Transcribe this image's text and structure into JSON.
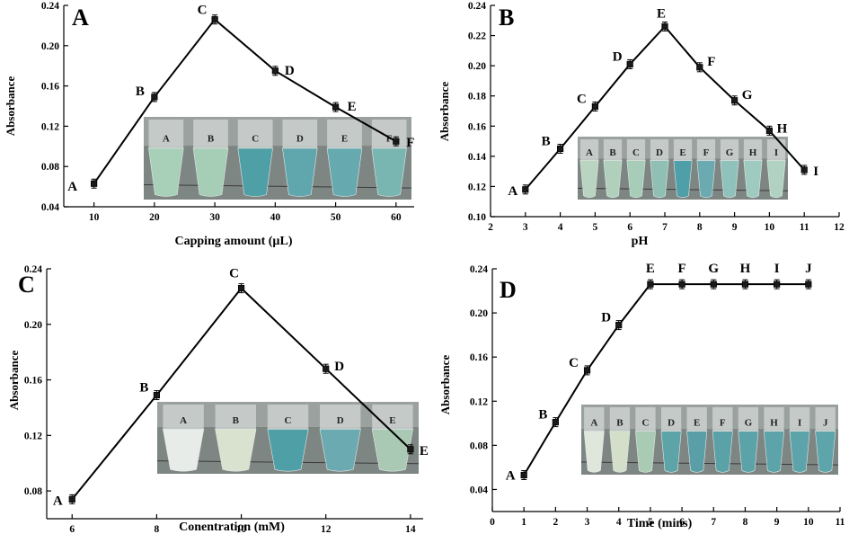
{
  "chart_data": [
    {
      "panel": "A",
      "type": "line",
      "x": [
        10,
        20,
        30,
        40,
        50,
        60
      ],
      "y": [
        0.063,
        0.149,
        0.226,
        0.175,
        0.139,
        0.105
      ],
      "point_labels": [
        "A",
        "B",
        "C",
        "D",
        "E",
        "F"
      ],
      "xlabel": "Capping amount (µL)",
      "ylabel": "Absorbance",
      "xlim": [
        5,
        63
      ],
      "ylim": [
        0.04,
        0.24
      ],
      "xticks": [
        10,
        20,
        30,
        40,
        50,
        60
      ],
      "yticks": [
        0.04,
        0.08,
        0.12,
        0.16,
        0.2,
        0.24
      ],
      "tube_labels": [
        "A",
        "B",
        "C",
        "D",
        "E",
        "F"
      ],
      "tube_colors": [
        "#a8cfb8",
        "#a6cdb6",
        "#4f9fa6",
        "#5fa6ad",
        "#66aab0",
        "#79b6b2"
      ]
    },
    {
      "panel": "B",
      "type": "line",
      "x": [
        3,
        4,
        5,
        6,
        7,
        8,
        9,
        10,
        11
      ],
      "y": [
        0.118,
        0.145,
        0.173,
        0.201,
        0.226,
        0.199,
        0.177,
        0.157,
        0.131
      ],
      "point_labels": [
        "A",
        "B",
        "C",
        "D",
        "E",
        "F",
        "G",
        "H",
        "I"
      ],
      "xlabel": "pH",
      "ylabel": "Absorbance",
      "xlim": [
        2,
        12
      ],
      "ylim": [
        0.1,
        0.24
      ],
      "xticks": [
        2,
        3,
        4,
        5,
        6,
        7,
        8,
        9,
        10,
        11,
        12
      ],
      "yticks": [
        0.1,
        0.12,
        0.14,
        0.16,
        0.18,
        0.2,
        0.22,
        0.24
      ],
      "tube_labels": [
        "A",
        "B",
        "C",
        "D",
        "E",
        "F",
        "G",
        "H",
        "I"
      ],
      "tube_colors": [
        "#b9d4c0",
        "#b0d0bc",
        "#a7ccb8",
        "#8fc0b3",
        "#4f9fa8",
        "#6aaab0",
        "#8fc2bb",
        "#9fcac0",
        "#b1d2c3"
      ]
    },
    {
      "panel": "C",
      "type": "line",
      "x": [
        6,
        8,
        10,
        12,
        14
      ],
      "y": [
        0.074,
        0.149,
        0.226,
        0.168,
        0.11
      ],
      "point_labels": [
        "A",
        "B",
        "C",
        "D",
        "E"
      ],
      "xlabel": "Conentration (mM)",
      "ylabel": "Absorbance",
      "xlim": [
        5.4,
        14.3
      ],
      "ylim": [
        0.06,
        0.24
      ],
      "xticks": [
        6,
        8,
        10,
        12,
        14
      ],
      "yticks": [
        0.08,
        0.12,
        0.16,
        0.2,
        0.24
      ],
      "tube_labels": [
        "A",
        "B",
        "C",
        "D",
        "E"
      ],
      "tube_colors": [
        "#e7ece9",
        "#d8e2cf",
        "#4f9fa6",
        "#6aaab0",
        "#a9c9b4"
      ]
    },
    {
      "panel": "D",
      "type": "line",
      "x": [
        1,
        2,
        3,
        4,
        5,
        6,
        7,
        8,
        9,
        10
      ],
      "y": [
        0.053,
        0.101,
        0.148,
        0.189,
        0.226,
        0.226,
        0.226,
        0.226,
        0.226,
        0.226
      ],
      "point_labels": [
        "A",
        "B",
        "C",
        "D",
        "E",
        "F",
        "G",
        "H",
        "I",
        "J"
      ],
      "xlabel": "Time (mins)",
      "ylabel": "Absorbance",
      "xlim": [
        0,
        11
      ],
      "ylim": [
        0.02,
        0.24
      ],
      "xticks": [
        0,
        1,
        2,
        3,
        4,
        5,
        6,
        7,
        8,
        9,
        10,
        11
      ],
      "yticks": [
        0.04,
        0.08,
        0.12,
        0.16,
        0.2,
        0.24
      ],
      "tube_labels": [
        "A",
        "B",
        "C",
        "D",
        "E",
        "F",
        "G",
        "H",
        "I",
        "J"
      ],
      "tube_colors": [
        "#dfe6dc",
        "#d3dfc8",
        "#a9cbb4",
        "#5da4a8",
        "#5a9fa7",
        "#5aa1a8",
        "#5ba2a9",
        "#5ca3aa",
        "#5da4aa",
        "#5ea5ab"
      ]
    }
  ]
}
